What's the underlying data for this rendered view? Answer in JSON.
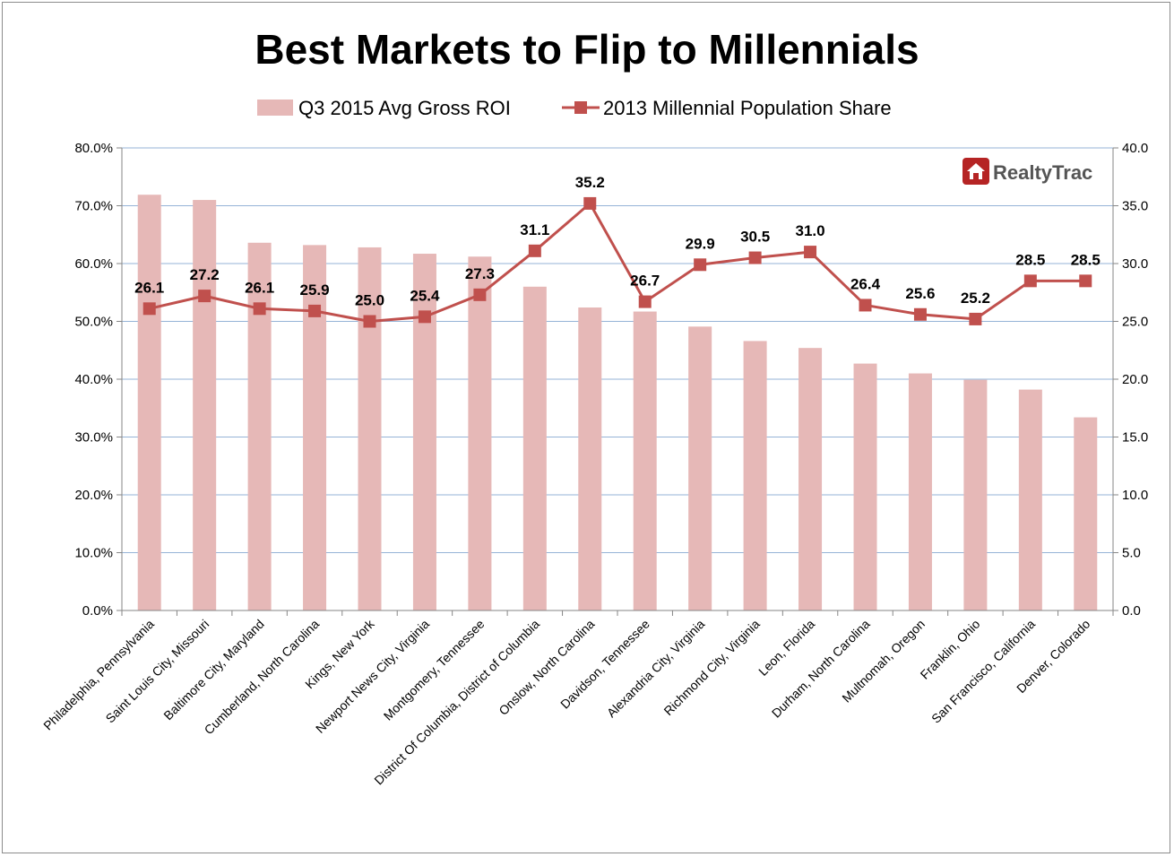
{
  "chart_data": {
    "type": "bar",
    "title": "Best Markets to Flip to Millennials",
    "categories": [
      "Philadelphia, Pennsylvania",
      "Saint Louis City, Missouri",
      "Baltimore City, Maryland",
      "Cumberland, North Carolina",
      "Kings, New York",
      "Newport News City, Virginia",
      "Montgomery, Tennessee",
      "District Of Columbia, District of Columbia",
      "Onslow, North Carolina",
      "Davidson, Tennessee",
      "Alexandria City, Virginia",
      "Richmond City, Virginia",
      "Leon, Florida",
      "Durham, North Carolina",
      "Multnomah, Oregon",
      "Franklin, Ohio",
      "San Francisco, California",
      "Denver, Colorado"
    ],
    "series": [
      {
        "name": "Q3 2015 Avg Gross ROI",
        "type": "bar",
        "axis": "left",
        "color": "#e6b8b7",
        "values": [
          71.9,
          71.0,
          63.6,
          63.2,
          62.8,
          61.7,
          61.2,
          56.0,
          52.4,
          51.7,
          49.1,
          46.6,
          45.4,
          42.7,
          41.0,
          39.9,
          38.2,
          33.4
        ]
      },
      {
        "name": "2013 Millennial Population Share",
        "type": "line",
        "axis": "right",
        "color": "#c0504d",
        "marker": "square",
        "values": [
          26.1,
          27.2,
          26.1,
          25.9,
          25.0,
          25.4,
          27.3,
          31.1,
          35.2,
          26.7,
          29.9,
          30.5,
          31.0,
          26.4,
          25.6,
          25.2,
          28.5,
          28.5
        ],
        "data_labels": [
          "26.1",
          "27.2",
          "26.1",
          "25.9",
          "25.0",
          "25.4",
          "27.3",
          "31.1",
          "35.2",
          "26.7",
          "29.9",
          "30.5",
          "31.0",
          "26.4",
          "25.6",
          "25.2",
          "28.5",
          "28.5"
        ]
      }
    ],
    "y_left": {
      "min": 0,
      "max": 80,
      "step": 10,
      "tick_labels": [
        "0.0%",
        "10.0%",
        "20.0%",
        "30.0%",
        "40.0%",
        "50.0%",
        "60.0%",
        "70.0%",
        "80.0%"
      ]
    },
    "y_right": {
      "min": 0,
      "max": 40,
      "step": 5,
      "tick_labels": [
        "0.0",
        "5.0",
        "10.0",
        "15.0",
        "20.0",
        "25.0",
        "30.0",
        "35.0",
        "40.0"
      ]
    },
    "grid": true,
    "gridline_color": "#95b3d7",
    "legend_position": "top",
    "brand": {
      "name": "RealtyTrac",
      "icon": "house-icon",
      "icon_color": "#b52424",
      "text_color": "#555555"
    }
  }
}
